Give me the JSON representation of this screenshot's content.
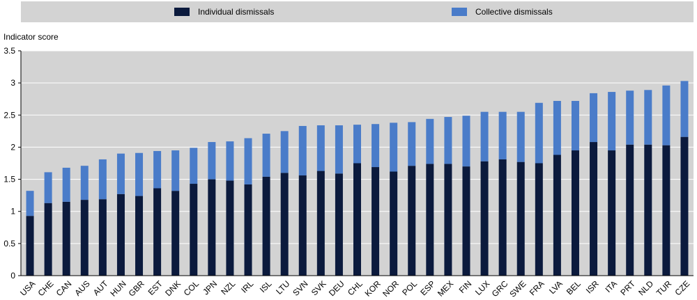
{
  "chart_data": {
    "type": "bar",
    "stacked": true,
    "ylabel": "Indicator score",
    "ylim": [
      0,
      3.5
    ],
    "yticks": [
      "0",
      "0.5",
      "1",
      "1.5",
      "2",
      "2.5",
      "3",
      "3.5"
    ],
    "legend_position": "top",
    "grid": true,
    "categories": [
      "USA",
      "CHE",
      "CAN",
      "AUS",
      "AUT",
      "HUN",
      "GBR",
      "EST",
      "DNK",
      "COL",
      "JPN",
      "NZL",
      "IRL",
      "ISL",
      "LTU",
      "SVN",
      "SVK",
      "DEU",
      "CHL",
      "KOR",
      "NOR",
      "POL",
      "ESP",
      "MEX",
      "FIN",
      "LUX",
      "GRC",
      "SWE",
      "FRA",
      "LVA",
      "BEL",
      "ISR",
      "ITA",
      "PRT",
      "NLD",
      "TUR",
      "CZE"
    ],
    "series": [
      {
        "name": "Individual dismissals",
        "color": "#0b1a3d",
        "values": [
          0.93,
          1.13,
          1.15,
          1.18,
          1.19,
          1.27,
          1.24,
          1.36,
          1.32,
          1.43,
          1.5,
          1.48,
          1.42,
          1.54,
          1.6,
          1.56,
          1.63,
          1.59,
          1.75,
          1.69,
          1.62,
          1.71,
          1.74,
          1.74,
          1.7,
          1.78,
          1.81,
          1.77,
          1.75,
          1.88,
          1.95,
          2.08,
          1.95,
          2.04,
          2.04,
          2.03,
          2.16
        ]
      },
      {
        "name": "Collective dismissals",
        "color": "#4a7cc9",
        "values": [
          0.39,
          0.48,
          0.53,
          0.53,
          0.62,
          0.63,
          0.67,
          0.58,
          0.63,
          0.56,
          0.58,
          0.61,
          0.72,
          0.67,
          0.65,
          0.77,
          0.71,
          0.75,
          0.6,
          0.67,
          0.76,
          0.68,
          0.7,
          0.73,
          0.79,
          0.77,
          0.74,
          0.78,
          0.94,
          0.84,
          0.77,
          0.76,
          0.91,
          0.84,
          0.85,
          0.93,
          0.87
        ]
      }
    ]
  }
}
